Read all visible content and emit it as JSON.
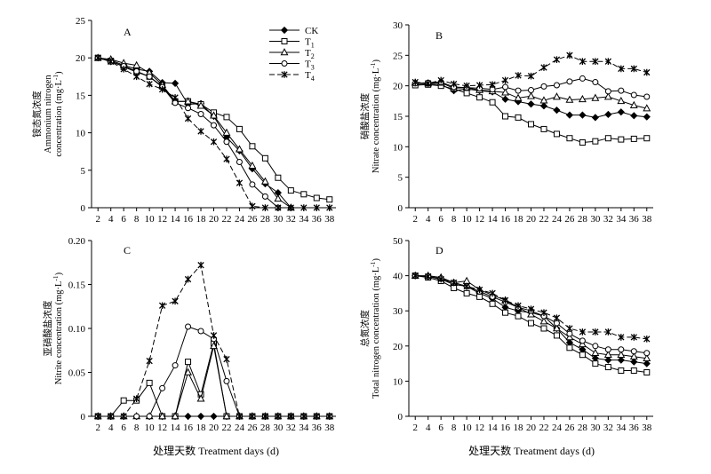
{
  "figure": {
    "xlabel": "处理天数 Treatment days (d)"
  },
  "legend": {
    "position": "top-right of panel A",
    "entries": [
      {
        "key": "CK",
        "label": "CK",
        "sub": "",
        "marker": "filled-diamond",
        "dashed": false
      },
      {
        "key": "T1",
        "label": "T",
        "sub": "1",
        "marker": "open-square",
        "dashed": false
      },
      {
        "key": "T2",
        "label": "T",
        "sub": "2",
        "marker": "open-triangle",
        "dashed": false
      },
      {
        "key": "T3",
        "label": "T",
        "sub": "3",
        "marker": "open-circle",
        "dashed": false
      },
      {
        "key": "T4",
        "label": "T",
        "sub": "4",
        "marker": "x-star",
        "dashed": true
      }
    ]
  },
  "chart_data": [
    {
      "panel": "A",
      "type": "line",
      "ylabel_cn": "铵态氮浓度",
      "ylabel_en1": "Ammonium nitrogen",
      "ylabel_en2": "concentration (mg·L",
      "ylabel_sup": "-1",
      "ylabel_end": ")",
      "ylim": [
        0,
        25
      ],
      "yticks": [
        "0",
        "5",
        "10",
        "15",
        "20",
        "25"
      ],
      "xticks": [
        "2",
        "4",
        "6",
        "8",
        "10",
        "12",
        "14",
        "16",
        "18",
        "20",
        "22",
        "24",
        "26",
        "28",
        "30",
        "32",
        "34",
        "36",
        "38"
      ],
      "series": [
        {
          "key": "CK",
          "x": [
            2,
            4,
            6,
            8,
            10,
            12,
            14,
            16,
            18,
            20,
            22,
            24,
            26,
            28,
            30,
            32
          ],
          "y": [
            20,
            19.7,
            19,
            18.5,
            18.2,
            16.7,
            16.6,
            13.8,
            13.9,
            12.2,
            9.4,
            7.6,
            5.2,
            3.2,
            2,
            0
          ]
        },
        {
          "key": "T1",
          "x": [
            2,
            4,
            6,
            8,
            10,
            12,
            14,
            16,
            18,
            20,
            22,
            24,
            26,
            28,
            30,
            32,
            34,
            36,
            38
          ],
          "y": [
            20,
            19.6,
            18.8,
            18.1,
            17.5,
            16.2,
            14.2,
            14.2,
            13.8,
            12.7,
            12.1,
            10.5,
            8.2,
            6.6,
            4,
            2.3,
            1.8,
            1.3,
            1.1
          ]
        },
        {
          "key": "T2",
          "x": [
            2,
            4,
            6,
            8,
            10,
            12,
            14,
            16,
            18,
            20,
            22,
            24,
            26,
            28,
            30,
            32
          ],
          "y": [
            20,
            19.8,
            19.3,
            19,
            18,
            16.4,
            14.2,
            14.2,
            13.6,
            12.3,
            10,
            7.8,
            5.6,
            3.5,
            1.2,
            0
          ]
        },
        {
          "key": "T3",
          "x": [
            2,
            4,
            6,
            8,
            10,
            12,
            14,
            16,
            18,
            20,
            22,
            24,
            26,
            28,
            30
          ],
          "y": [
            20,
            19.5,
            18.9,
            18.2,
            17.5,
            16.1,
            14,
            13.3,
            12.5,
            11,
            8.8,
            6.1,
            3.1,
            1.5,
            0
          ]
        },
        {
          "key": "T4",
          "x": [
            2,
            4,
            6,
            8,
            10,
            12,
            14,
            16,
            18,
            20,
            22,
            24,
            26,
            28,
            30,
            32,
            34,
            36,
            38
          ],
          "y": [
            20,
            19.5,
            18.5,
            17.5,
            16.5,
            15.8,
            14.7,
            11.9,
            10.2,
            8.8,
            6.5,
            3.3,
            0.2,
            0,
            0,
            0,
            0,
            0,
            0
          ]
        }
      ]
    },
    {
      "panel": "B",
      "type": "line",
      "ylabel_cn": "硝酸盐浓度",
      "ylabel_en1": "",
      "ylabel_en2": "Nitrate concentration (mg·L",
      "ylabel_sup": "-1",
      "ylabel_end": ")",
      "ylim": [
        0,
        30
      ],
      "yticks": [
        "0",
        "5",
        "10",
        "15",
        "20",
        "25",
        "30"
      ],
      "xticks": [
        "2",
        "4",
        "6",
        "8",
        "10",
        "12",
        "14",
        "16",
        "18",
        "20",
        "22",
        "24",
        "26",
        "28",
        "30",
        "32",
        "34",
        "36",
        "38"
      ],
      "series": [
        {
          "key": "CK",
          "x": [
            2,
            4,
            6,
            8,
            10,
            12,
            14,
            16,
            18,
            20,
            22,
            24,
            26,
            28,
            30,
            32,
            34,
            36,
            38
          ],
          "y": [
            20.2,
            20.3,
            20.2,
            19.2,
            19.5,
            19.2,
            19,
            17.8,
            17.4,
            17,
            16.7,
            16,
            15.2,
            15.2,
            14.8,
            15.3,
            15.7,
            15.1,
            14.9
          ]
        },
        {
          "key": "T1",
          "x": [
            2,
            4,
            6,
            8,
            10,
            12,
            14,
            16,
            18,
            20,
            22,
            24,
            26,
            28,
            30,
            32,
            34,
            36,
            38
          ],
          "y": [
            20.1,
            20.2,
            20,
            19.5,
            18.8,
            18.1,
            17.3,
            15,
            14.8,
            13.7,
            12.9,
            12.1,
            11.4,
            10.7,
            10.9,
            11.4,
            11.2,
            11.3,
            11.4
          ]
        },
        {
          "key": "T2",
          "x": [
            2,
            4,
            6,
            8,
            10,
            12,
            14,
            16,
            18,
            20,
            22,
            24,
            26,
            28,
            30,
            32,
            34,
            36,
            38
          ],
          "y": [
            20.5,
            20.4,
            20.5,
            19.6,
            19.7,
            19.3,
            19.1,
            18.9,
            18,
            18.3,
            17.6,
            18.2,
            17.7,
            17.8,
            18,
            18.2,
            17.5,
            16.8,
            16.3
          ]
        },
        {
          "key": "T3",
          "x": [
            2,
            4,
            6,
            8,
            10,
            12,
            14,
            16,
            18,
            20,
            22,
            24,
            26,
            28,
            30,
            32,
            34,
            36,
            38
          ],
          "y": [
            20.4,
            20.5,
            20.6,
            19.8,
            19.7,
            19.6,
            19.4,
            19.8,
            19.2,
            19.3,
            19.9,
            20.1,
            20.7,
            21.2,
            20.6,
            19.1,
            19.2,
            18.5,
            18.2
          ]
        },
        {
          "key": "T4",
          "x": [
            2,
            4,
            6,
            8,
            10,
            12,
            14,
            16,
            18,
            20,
            22,
            24,
            26,
            28,
            30,
            32,
            34,
            36,
            38
          ],
          "y": [
            20.6,
            20.4,
            20.9,
            20.3,
            20,
            20.1,
            20.2,
            20.9,
            21.7,
            21.6,
            23,
            24.3,
            25,
            24,
            24,
            24,
            22.8,
            22.8,
            22.2
          ]
        }
      ]
    },
    {
      "panel": "C",
      "type": "line",
      "ylabel_cn": "亚硝酸盐浓度",
      "ylabel_en1": "",
      "ylabel_en2": "Nitrite concentration (mg·L",
      "ylabel_sup": "-1",
      "ylabel_end": ")",
      "ylim": [
        0,
        0.2
      ],
      "yticks": [
        "0",
        "0.05",
        "0.10",
        "0.15",
        "0.20"
      ],
      "xticks": [
        "2",
        "4",
        "6",
        "8",
        "10",
        "12",
        "14",
        "16",
        "18",
        "20",
        "22",
        "24",
        "26",
        "28",
        "30",
        "32",
        "34",
        "36",
        "38"
      ],
      "series": [
        {
          "key": "CK",
          "x": [
            2,
            4,
            6,
            8,
            10,
            12,
            14,
            16,
            18,
            20,
            22,
            24,
            26,
            28,
            30,
            32,
            34,
            36,
            38
          ],
          "y": [
            0,
            0,
            0,
            0,
            0,
            0,
            0,
            0,
            0,
            0,
            0,
            0,
            0,
            0,
            0,
            0,
            0,
            0,
            0
          ]
        },
        {
          "key": "T1",
          "x": [
            2,
            4,
            6,
            8,
            10,
            12,
            14,
            16,
            18,
            20,
            22,
            24,
            26,
            28,
            30,
            32,
            34,
            36,
            38
          ],
          "y": [
            0,
            0,
            0.018,
            0.018,
            0.038,
            0,
            0,
            0.062,
            0.025,
            0.083,
            0,
            0,
            0,
            0,
            0,
            0,
            0,
            0,
            0
          ]
        },
        {
          "key": "T2",
          "x": [
            2,
            4,
            6,
            8,
            10,
            12,
            14,
            16,
            18,
            20,
            22,
            24,
            26,
            28,
            30,
            32,
            34,
            36,
            38
          ],
          "y": [
            0,
            0,
            0,
            0,
            0,
            0,
            0,
            0.05,
            0.02,
            0.08,
            0,
            0,
            0,
            0,
            0,
            0,
            0,
            0,
            0
          ]
        },
        {
          "key": "T3",
          "x": [
            2,
            4,
            6,
            8,
            10,
            12,
            14,
            16,
            18,
            20,
            22,
            24,
            26,
            28,
            30,
            32,
            34,
            36,
            38
          ],
          "y": [
            0,
            0,
            0,
            0,
            0,
            0.032,
            0.058,
            0.102,
            0.097,
            0.088,
            0.04,
            0,
            0,
            0,
            0,
            0,
            0,
            0,
            0
          ]
        },
        {
          "key": "T4",
          "x": [
            2,
            4,
            6,
            8,
            10,
            12,
            14,
            16,
            18,
            20,
            22,
            24,
            26,
            28,
            30,
            32,
            34,
            36,
            38
          ],
          "y": [
            0,
            0,
            0,
            0.02,
            0.063,
            0.126,
            0.131,
            0.156,
            0.172,
            0.092,
            0.065,
            0,
            0,
            0,
            0,
            0,
            0,
            0,
            0
          ]
        }
      ]
    },
    {
      "panel": "D",
      "type": "line",
      "ylabel_cn": "总氮浓度",
      "ylabel_en1": "",
      "ylabel_en2": "Total nitrogen concentration (mg·L",
      "ylabel_sup": "-1",
      "ylabel_end": ")",
      "ylim": [
        0,
        50
      ],
      "yticks": [
        "0",
        "10",
        "20",
        "30",
        "40",
        "50"
      ],
      "xticks": [
        "2",
        "4",
        "6",
        "8",
        "10",
        "12",
        "14",
        "16",
        "18",
        "20",
        "22",
        "24",
        "26",
        "28",
        "30",
        "32",
        "34",
        "36",
        "38"
      ],
      "series": [
        {
          "key": "CK",
          "x": [
            2,
            4,
            6,
            8,
            10,
            12,
            14,
            16,
            18,
            20,
            22,
            24,
            26,
            28,
            30,
            32,
            34,
            36,
            38
          ],
          "y": [
            40,
            39.8,
            39,
            37.5,
            37,
            35,
            33.5,
            31,
            30,
            29.5,
            28.5,
            25,
            21,
            19,
            16.5,
            16,
            16,
            15.5,
            15
          ]
        },
        {
          "key": "T1",
          "x": [
            2,
            4,
            6,
            8,
            10,
            12,
            14,
            16,
            18,
            20,
            22,
            24,
            26,
            28,
            30,
            32,
            34,
            36,
            38
          ],
          "y": [
            40,
            39.5,
            38.5,
            36.5,
            35,
            34,
            32,
            29.5,
            28.5,
            26.5,
            25,
            23,
            19.5,
            17.5,
            15,
            14,
            13,
            13,
            12.5
          ]
        },
        {
          "key": "T2",
          "x": [
            2,
            4,
            6,
            8,
            10,
            12,
            14,
            16,
            18,
            20,
            22,
            24,
            26,
            28,
            30,
            32,
            34,
            36,
            38
          ],
          "y": [
            40,
            40,
            39.5,
            38,
            38.5,
            36,
            34.5,
            33,
            31,
            29,
            27,
            25,
            22.5,
            20.5,
            18,
            17.5,
            17.5,
            17,
            16.5
          ]
        },
        {
          "key": "T3",
          "x": [
            2,
            4,
            6,
            8,
            10,
            12,
            14,
            16,
            18,
            20,
            22,
            24,
            26,
            28,
            30,
            32,
            34,
            36,
            38
          ],
          "y": [
            40,
            39.8,
            39.2,
            38,
            37,
            35.5,
            34,
            32.5,
            31,
            30,
            28.5,
            26.5,
            23.5,
            21.5,
            20,
            19,
            19,
            18.5,
            18
          ]
        },
        {
          "key": "T4",
          "x": [
            2,
            4,
            6,
            8,
            10,
            12,
            14,
            16,
            18,
            20,
            22,
            24,
            26,
            28,
            30,
            32,
            34,
            36,
            38
          ],
          "y": [
            40,
            39.8,
            39,
            38,
            37,
            36,
            35,
            33,
            31.5,
            30.5,
            29.5,
            28,
            25,
            24,
            24,
            24,
            22.5,
            22.5,
            22
          ]
        }
      ]
    }
  ]
}
